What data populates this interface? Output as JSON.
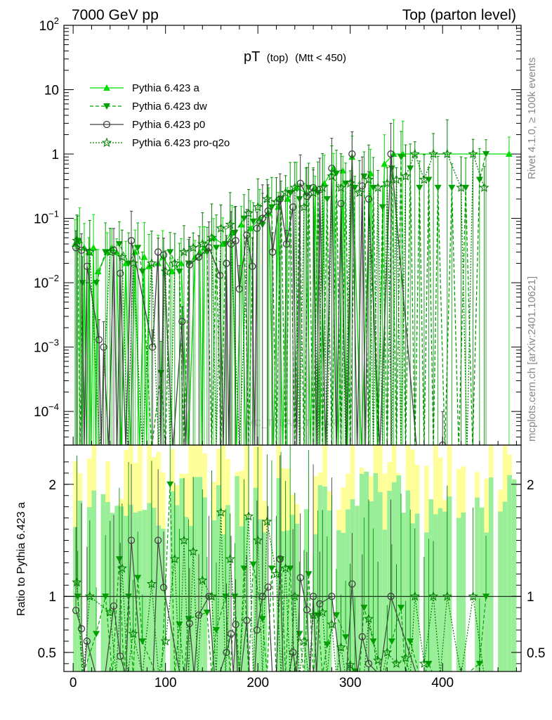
{
  "header": {
    "left": "7000 GeV pp",
    "right": "Top (parton level)"
  },
  "side_labels": {
    "rivet": "Rivet 4.1.0, ≥ 100k events",
    "mcplots": "mcplots.cern.ch [arXiv:2401.10621]"
  },
  "watermark": "MC_TTBAR_TTBAR",
  "chart_data": {
    "type": "line",
    "title": "pT",
    "title_sub": "(top)",
    "title_cond": "(Mtt < 450)",
    "xlim": [
      -10,
      485
    ],
    "ylim_log": [
      3e-05,
      100
    ],
    "ratio_ylim": [
      0.33,
      2.35
    ],
    "ratio_ylabel": "Ratio to Pythia 6.423 a",
    "x_ticks": [
      "0",
      "100",
      "200",
      "300",
      "400"
    ],
    "x_tick_values": [
      0,
      100,
      200,
      300,
      400
    ],
    "y_ticks": [
      {
        "value": 100,
        "base": "10",
        "exp": "2"
      },
      {
        "value": 10,
        "base": "10",
        "exp": ""
      },
      {
        "value": 1,
        "base": "1",
        "exp": ""
      },
      {
        "value": 0.1,
        "base": "10",
        "exp": "−1"
      },
      {
        "value": 0.01,
        "base": "10",
        "exp": "−2"
      },
      {
        "value": 0.001,
        "base": "10",
        "exp": "−3"
      },
      {
        "value": 0.0001,
        "base": "10",
        "exp": "−4"
      }
    ],
    "ratio_ticks": [
      {
        "value": 2,
        "label": "2"
      },
      {
        "value": 1,
        "label": "1"
      },
      {
        "value": 0.5,
        "label": "0.5"
      }
    ],
    "series": [
      {
        "name": "Pythia 6.423 a",
        "color": "#00dd00",
        "style": "solid",
        "marker": "triangle-up",
        "points": [
          [
            2,
            0.04
          ],
          [
            7,
            0.045
          ],
          [
            12,
            0.035
          ],
          [
            17,
            0.03
          ],
          [
            22,
            0.035
          ],
          [
            27,
            0.015
          ],
          [
            37,
            0.03
          ],
          [
            42,
            0.035
          ],
          [
            47,
            0.03
          ],
          [
            57,
            0.02
          ],
          [
            67,
            0.03
          ],
          [
            77,
            0.025
          ],
          [
            82,
            0.018
          ],
          [
            92,
            0.02
          ],
          [
            97,
            0.025
          ],
          [
            107,
            0.015
          ],
          [
            117,
            0.02
          ],
          [
            132,
            0.025
          ],
          [
            137,
            0.03
          ],
          [
            142,
            0.035
          ],
          [
            152,
            0.05
          ],
          [
            162,
            0.04
          ],
          [
            172,
            0.06
          ],
          [
            182,
            0.08
          ],
          [
            192,
            0.07
          ],
          [
            202,
            0.1
          ],
          [
            212,
            0.12
          ],
          [
            222,
            0.15
          ],
          [
            232,
            0.2
          ],
          [
            242,
            0.3
          ],
          [
            252,
            0.25
          ],
          [
            262,
            0.3
          ],
          [
            272,
            0.35
          ],
          [
            282,
            0.6
          ],
          [
            292,
            0.55
          ],
          [
            302,
            0.9
          ],
          [
            322,
            0.5
          ],
          [
            337,
            0.7
          ],
          [
            347,
            1
          ],
          [
            357,
            1
          ],
          [
            472,
            1
          ]
        ]
      },
      {
        "name": "Pythia 6.423 dw",
        "color": "#00a000",
        "style": "dashed",
        "marker": "triangle-down",
        "points": [
          [
            5,
            0.045
          ],
          [
            10,
            0.01
          ],
          [
            25,
            0.01
          ],
          [
            35,
            0.03
          ],
          [
            50,
            0.04
          ],
          [
            60,
            0.02
          ],
          [
            70,
            0.035
          ],
          [
            75,
            0.015
          ],
          [
            95,
            0.0004
          ],
          [
            105,
            0.03
          ],
          [
            115,
            0.015
          ],
          [
            125,
            0.02
          ],
          [
            145,
            0.03
          ],
          [
            155,
            0.035
          ],
          [
            165,
            0.04
          ],
          [
            175,
            0.06
          ],
          [
            185,
            0.1
          ],
          [
            195,
            0.09
          ],
          [
            205,
            0.08
          ],
          [
            215,
            0.15
          ],
          [
            225,
            0.2
          ],
          [
            235,
            0.25
          ],
          [
            245,
            0.2
          ],
          [
            255,
            0.3
          ],
          [
            265,
            0.25
          ],
          [
            275,
            0.2
          ],
          [
            285,
            0.5
          ],
          [
            295,
            0.35
          ],
          [
            305,
            0.3
          ],
          [
            315,
            0.45
          ],
          [
            325,
            0.3
          ],
          [
            335,
            0.15
          ],
          [
            345,
            0.6
          ],
          [
            355,
            0.9
          ],
          [
            365,
            0.6
          ],
          [
            375,
            0.3
          ],
          [
            385,
            0.4
          ],
          [
            395,
            0.3
          ],
          [
            410,
            0.3
          ],
          [
            425,
            0.3
          ],
          [
            440,
            0.4
          ],
          [
            447,
            1
          ]
        ]
      },
      {
        "name": "Pythia 6.423 p0",
        "color": "#404040",
        "style": "solid",
        "marker": "circle-open",
        "points": [
          [
            3,
            0.035
          ],
          [
            9,
            0.032
          ],
          [
            15,
            0.018
          ],
          [
            28,
            0.0013
          ],
          [
            33,
            0.001
          ],
          [
            44,
            0.032
          ],
          [
            51,
            0.014
          ],
          [
            63,
            0.045
          ],
          [
            86,
            0.001
          ],
          [
            92,
            0.03
          ],
          [
            98,
            0.027
          ],
          [
            118,
            0.0025
          ],
          [
            126,
            0.019
          ],
          [
            136,
            0.025
          ],
          [
            147,
            0.035
          ],
          [
            159,
            0.013
          ],
          [
            166,
            0.02
          ],
          [
            171,
            0.04
          ],
          [
            176,
            0.045
          ],
          [
            180,
            0.008
          ],
          [
            188,
            0.055
          ],
          [
            194,
            0.018
          ],
          [
            199,
            0.07
          ],
          [
            205,
            0.1
          ],
          [
            211,
            0.13
          ],
          [
            216,
            0.03
          ],
          [
            224,
            0.2
          ],
          [
            231,
            0.04
          ],
          [
            238,
            0.15
          ],
          [
            246,
            0.35
          ],
          [
            253,
            0.22
          ],
          [
            260,
            0.3
          ],
          [
            267,
            0.28
          ],
          [
            280,
            0.6
          ],
          [
            290,
            0.17
          ],
          [
            302,
            1
          ],
          [
            313,
            0.32
          ],
          [
            320,
            0.2
          ],
          [
            344,
            1
          ],
          [
            400,
            3e-05
          ]
        ]
      },
      {
        "name": "Pythia 6.423 pro-q2o",
        "color": "#008000",
        "style": "dotted",
        "marker": "star-open",
        "points": [
          [
            4,
            0.045
          ],
          [
            18,
            0.03
          ],
          [
            40,
            0.03
          ],
          [
            53,
            0.025
          ],
          [
            65,
            0.02
          ],
          [
            85,
            0.02
          ],
          [
            100,
            0.015
          ],
          [
            110,
            0.02
          ],
          [
            120,
            0.03
          ],
          [
            130,
            0.035
          ],
          [
            140,
            0.04
          ],
          [
            150,
            0.05
          ],
          [
            160,
            0.07
          ],
          [
            170,
            0.08
          ],
          [
            190,
            0.12
          ],
          [
            200,
            0.15
          ],
          [
            210,
            0.2
          ],
          [
            220,
            0.18
          ],
          [
            230,
            0.25
          ],
          [
            240,
            0.3
          ],
          [
            250,
            0.15
          ],
          [
            260,
            0.25
          ],
          [
            270,
            0.3
          ],
          [
            280,
            0.45
          ],
          [
            290,
            0.3
          ],
          [
            300,
            0.35
          ],
          [
            310,
            0.25
          ],
          [
            320,
            0.4
          ],
          [
            330,
            0.3
          ],
          [
            340,
            0.35
          ],
          [
            350,
            0.4
          ],
          [
            360,
            0.45
          ],
          [
            370,
            1
          ],
          [
            380,
            0.4
          ],
          [
            390,
            1
          ],
          [
            405,
            1
          ],
          [
            420,
            0.3
          ],
          [
            433,
            1
          ],
          [
            445,
            0.3
          ]
        ]
      }
    ]
  }
}
